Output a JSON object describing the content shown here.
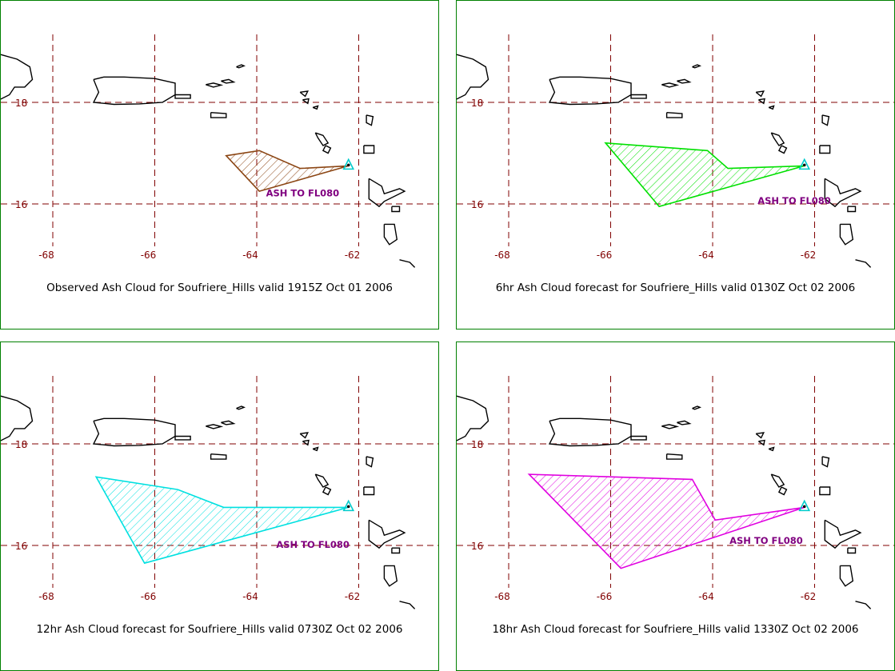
{
  "panels": [
    {
      "caption": "Observed Ash Cloud for Soufriere_Hills valid 1915Z Oct 01 2006",
      "ash_label": "ASH TO FL080",
      "label_at": [
        -63.1,
        16.15
      ],
      "color": "#8B4513",
      "polygon": [
        [
          -62.2,
          16.75
        ],
        [
          -63.15,
          16.7
        ],
        [
          -63.95,
          17.05
        ],
        [
          -64.6,
          16.95
        ],
        [
          -63.95,
          16.25
        ],
        [
          -62.2,
          16.75
        ]
      ]
    },
    {
      "caption": "6hr Ash Cloud forecast for Soufriere_Hills valid 0130Z Oct 02 2006",
      "ash_label": "ASH TO FL080",
      "label_at": [
        -62.4,
        16.0
      ],
      "color": "#00E000",
      "polygon": [
        [
          -62.2,
          16.75
        ],
        [
          -63.7,
          16.7
        ],
        [
          -64.1,
          17.05
        ],
        [
          -66.1,
          17.2
        ],
        [
          -65.05,
          15.95
        ],
        [
          -62.2,
          16.75
        ]
      ]
    },
    {
      "caption": "12hr Ash Cloud forecast for Soufriere_Hills valid 0730Z Oct 02 2006",
      "ash_label": "ASH TO FL080",
      "label_at": [
        -62.9,
        15.95
      ],
      "color": "#00E0E0",
      "polygon": [
        [
          -62.2,
          16.75
        ],
        [
          -64.65,
          16.75
        ],
        [
          -65.55,
          17.1
        ],
        [
          -67.15,
          17.35
        ],
        [
          -66.2,
          15.65
        ],
        [
          -62.2,
          16.75
        ]
      ]
    },
    {
      "caption": "18hr Ash Cloud forecast for Soufriere_Hills valid 1330Z Oct 02 2006",
      "ash_label": "ASH TO FL080",
      "label_at": [
        -62.95,
        16.03
      ],
      "color": "#E000E0",
      "polygon": [
        [
          -62.2,
          16.75
        ],
        [
          -63.95,
          16.5
        ],
        [
          -64.4,
          17.3
        ],
        [
          -67.6,
          17.4
        ],
        [
          -65.8,
          15.55
        ],
        [
          -62.2,
          16.75
        ]
      ]
    }
  ],
  "axes": {
    "lon_ticks": [
      -68,
      -66,
      -64,
      -62
    ],
    "lat_ticks": [
      18,
      16
    ],
    "lon_labels": [
      "-68",
      "-66",
      "-64",
      "-62"
    ],
    "lat_labels": [
      "18",
      "16"
    ],
    "lon_range": [
      -69,
      -60.5
    ],
    "lat_range": [
      14.6,
      19.2
    ]
  },
  "volcano": {
    "name_hint": "Soufriere_Hills",
    "lon": -62.2,
    "lat": 16.75
  },
  "colors": {
    "grid": "#800000",
    "frame": "#008000",
    "coast": "#000000",
    "volcano_marker": "#00CCCC",
    "label": "#800080"
  }
}
